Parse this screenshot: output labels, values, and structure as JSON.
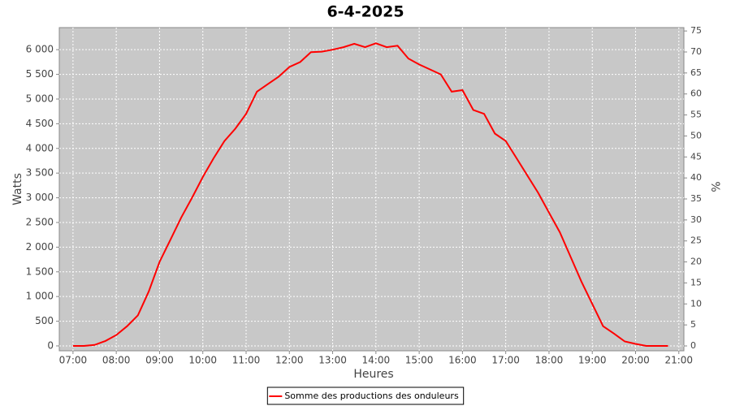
{
  "chart_data": {
    "type": "line",
    "title": "6-4-2025",
    "xlabel": "Heures",
    "ylabel": "Watts",
    "y2label": "%",
    "x": [
      "07:00",
      "07:15",
      "07:30",
      "07:45",
      "08:00",
      "08:15",
      "08:30",
      "08:45",
      "09:00",
      "09:15",
      "09:30",
      "09:45",
      "10:00",
      "10:15",
      "10:30",
      "10:45",
      "11:00",
      "11:15",
      "11:30",
      "11:45",
      "12:00",
      "12:15",
      "12:30",
      "12:45",
      "13:00",
      "13:15",
      "13:30",
      "13:45",
      "14:00",
      "14:15",
      "14:30",
      "14:45",
      "15:00",
      "15:15",
      "15:30",
      "15:45",
      "16:00",
      "16:15",
      "16:30",
      "16:45",
      "17:00",
      "17:15",
      "17:30",
      "17:45",
      "18:00",
      "18:15",
      "18:30",
      "18:45",
      "19:00",
      "19:15",
      "19:30",
      "19:45",
      "20:00",
      "20:15",
      "20:30",
      "20:45"
    ],
    "series": [
      {
        "name": "Somme des productions des onduleurs",
        "color": "#ff0000",
        "values": [
          0,
          0,
          20,
          100,
          220,
          400,
          620,
          1100,
          1700,
          2150,
          2600,
          3000,
          3420,
          3800,
          4150,
          4400,
          4700,
          5150,
          5300,
          5450,
          5650,
          5750,
          5950,
          5960,
          6000,
          6050,
          6120,
          6050,
          6130,
          6050,
          6080,
          5820,
          5700,
          5600,
          5500,
          5150,
          5180,
          4780,
          4700,
          4300,
          4150,
          3800,
          3450,
          3100,
          2700,
          2300,
          1800,
          1300,
          850,
          400,
          250,
          90,
          40,
          0,
          0,
          0
        ]
      }
    ],
    "xlim": [
      "06:41",
      "21:07"
    ],
    "xticks": [
      "07:00",
      "08:00",
      "09:00",
      "10:00",
      "11:00",
      "12:00",
      "13:00",
      "14:00",
      "15:00",
      "16:00",
      "17:00",
      "18:00",
      "19:00",
      "20:00",
      "21:00"
    ],
    "ylim": [
      -99,
      6447
    ],
    "yticks": [
      0,
      500,
      {
        "value": 1000,
        "label": "1 000"
      },
      {
        "value": 1500,
        "label": "1 500"
      },
      {
        "value": 2000,
        "label": "2 000"
      },
      {
        "value": 2500,
        "label": "2 500"
      },
      {
        "value": 3000,
        "label": "3 000"
      },
      {
        "value": 3500,
        "label": "3 500"
      },
      {
        "value": 4000,
        "label": "4 000"
      },
      {
        "value": 4500,
        "label": "4 500"
      },
      {
        "value": 5000,
        "label": "5 000"
      },
      {
        "value": 5500,
        "label": "5 500"
      },
      {
        "value": 6000,
        "label": "6 000"
      }
    ],
    "y2lim": [
      -1.16,
      75.8
    ],
    "y2ticks": [
      0,
      5,
      10,
      15,
      20,
      25,
      30,
      35,
      40,
      45,
      50,
      55,
      60,
      65,
      70,
      75
    ],
    "grid": true,
    "background": "#c8c8c8",
    "legend": "bottom"
  }
}
